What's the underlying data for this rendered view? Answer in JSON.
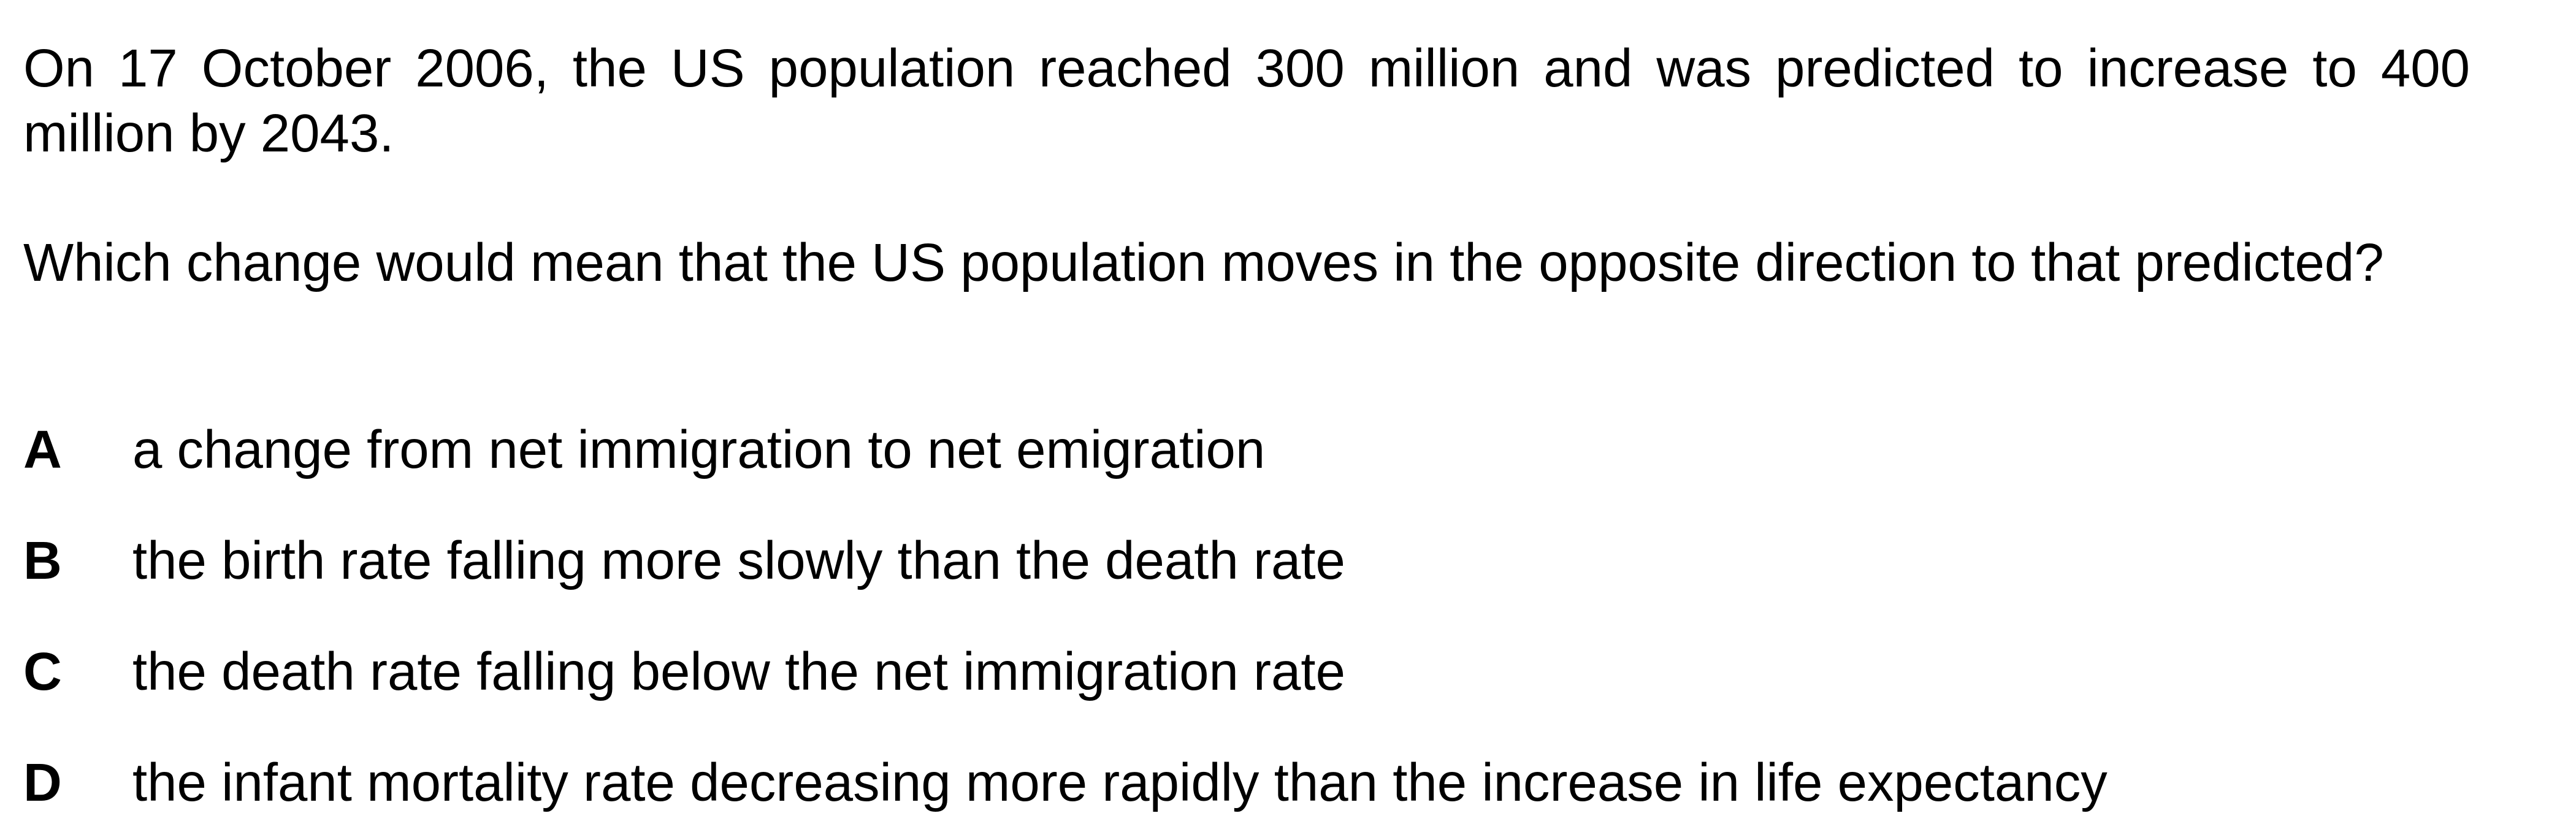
{
  "question": {
    "intro": "On 17 October 2006, the US population reached 300 million and was predicted to increase to 400 million by 2043.",
    "prompt": "Which change would mean that the US population moves in the opposite direction to that predicted?"
  },
  "options": [
    {
      "letter": "A",
      "text": "a change from net immigration to net emigration"
    },
    {
      "letter": "B",
      "text": "the birth rate falling more slowly than the death rate"
    },
    {
      "letter": "C",
      "text": "the death rate falling below the net immigration rate"
    },
    {
      "letter": "D",
      "text": "the infant mortality rate decreasing more rapidly than the increase in life expectancy"
    }
  ]
}
